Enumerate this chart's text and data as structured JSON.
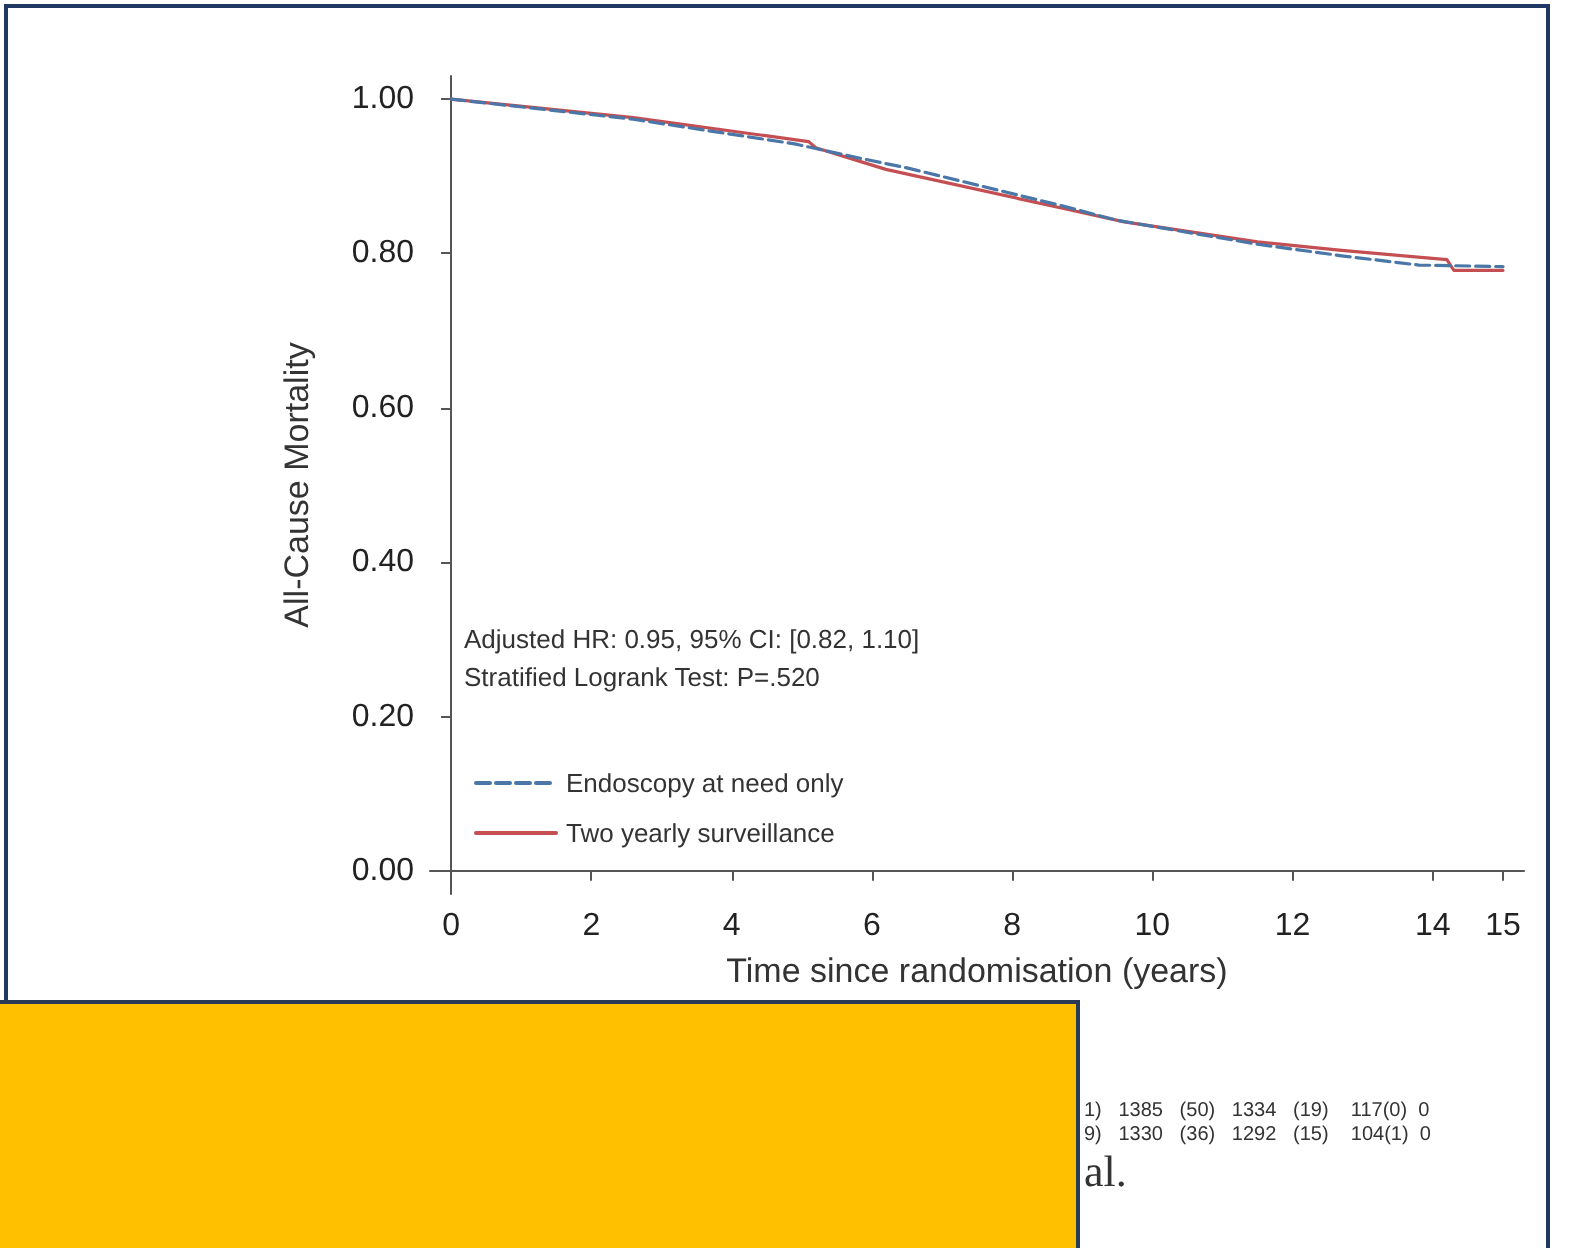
{
  "chart_data": {
    "type": "line",
    "xlabel": "Time since randomisation (years)",
    "ylabel": "All-Cause Mortality",
    "annotations": [
      "Adjusted HR: 0.95, 95% CI: [0.82, 1.10]",
      "Stratified Logrank Test: P=.520",
      "1)   1385   (50)   1334   (19)    117(0)  0",
      "9)   1330   (36)   1292   (15)    104(1)  0",
      "al."
    ],
    "series": [
      {
        "name": "Endoscopy at need only",
        "color": "#4a77a8",
        "line_style": "dashed",
        "x": [
          0,
          2.6,
          4.9,
          5.8,
          6.5,
          8.7,
          9.5,
          11.5,
          12.7,
          13.8,
          15
        ],
        "values": [
          1.0,
          0.974,
          0.942,
          0.924,
          0.911,
          0.862,
          0.843,
          0.812,
          0.797,
          0.785,
          0.783
        ]
      },
      {
        "name": "Two yearly surveillance",
        "color": "#c44e52",
        "line_style": "solid",
        "x": [
          0,
          2.6,
          5.1,
          5.2,
          6.2,
          8.8,
          9.6,
          11.5,
          12.7,
          14.2,
          14.3,
          15
        ],
        "values": [
          1.0,
          0.976,
          0.945,
          0.937,
          0.909,
          0.857,
          0.841,
          0.815,
          0.804,
          0.792,
          0.778,
          0.778
        ]
      }
    ],
    "xlim": [
      -0.3,
      15.3
    ],
    "xticks": [
      0,
      2,
      4,
      6,
      8,
      10,
      12,
      14,
      15
    ],
    "ylim": [
      -0.03,
      1.03
    ],
    "yticks": [
      {
        "value": 0,
        "label": "0.00"
      },
      {
        "value": 0.2,
        "label": "0.20"
      },
      {
        "value": 0.4,
        "label": "0.40"
      },
      {
        "value": 0.6,
        "label": "0.60"
      },
      {
        "value": 0.8,
        "label": "0.80"
      },
      {
        "value": 1,
        "label": "1.00"
      }
    ],
    "grid": false,
    "legend": "bottom left",
    "marker": "none"
  }
}
